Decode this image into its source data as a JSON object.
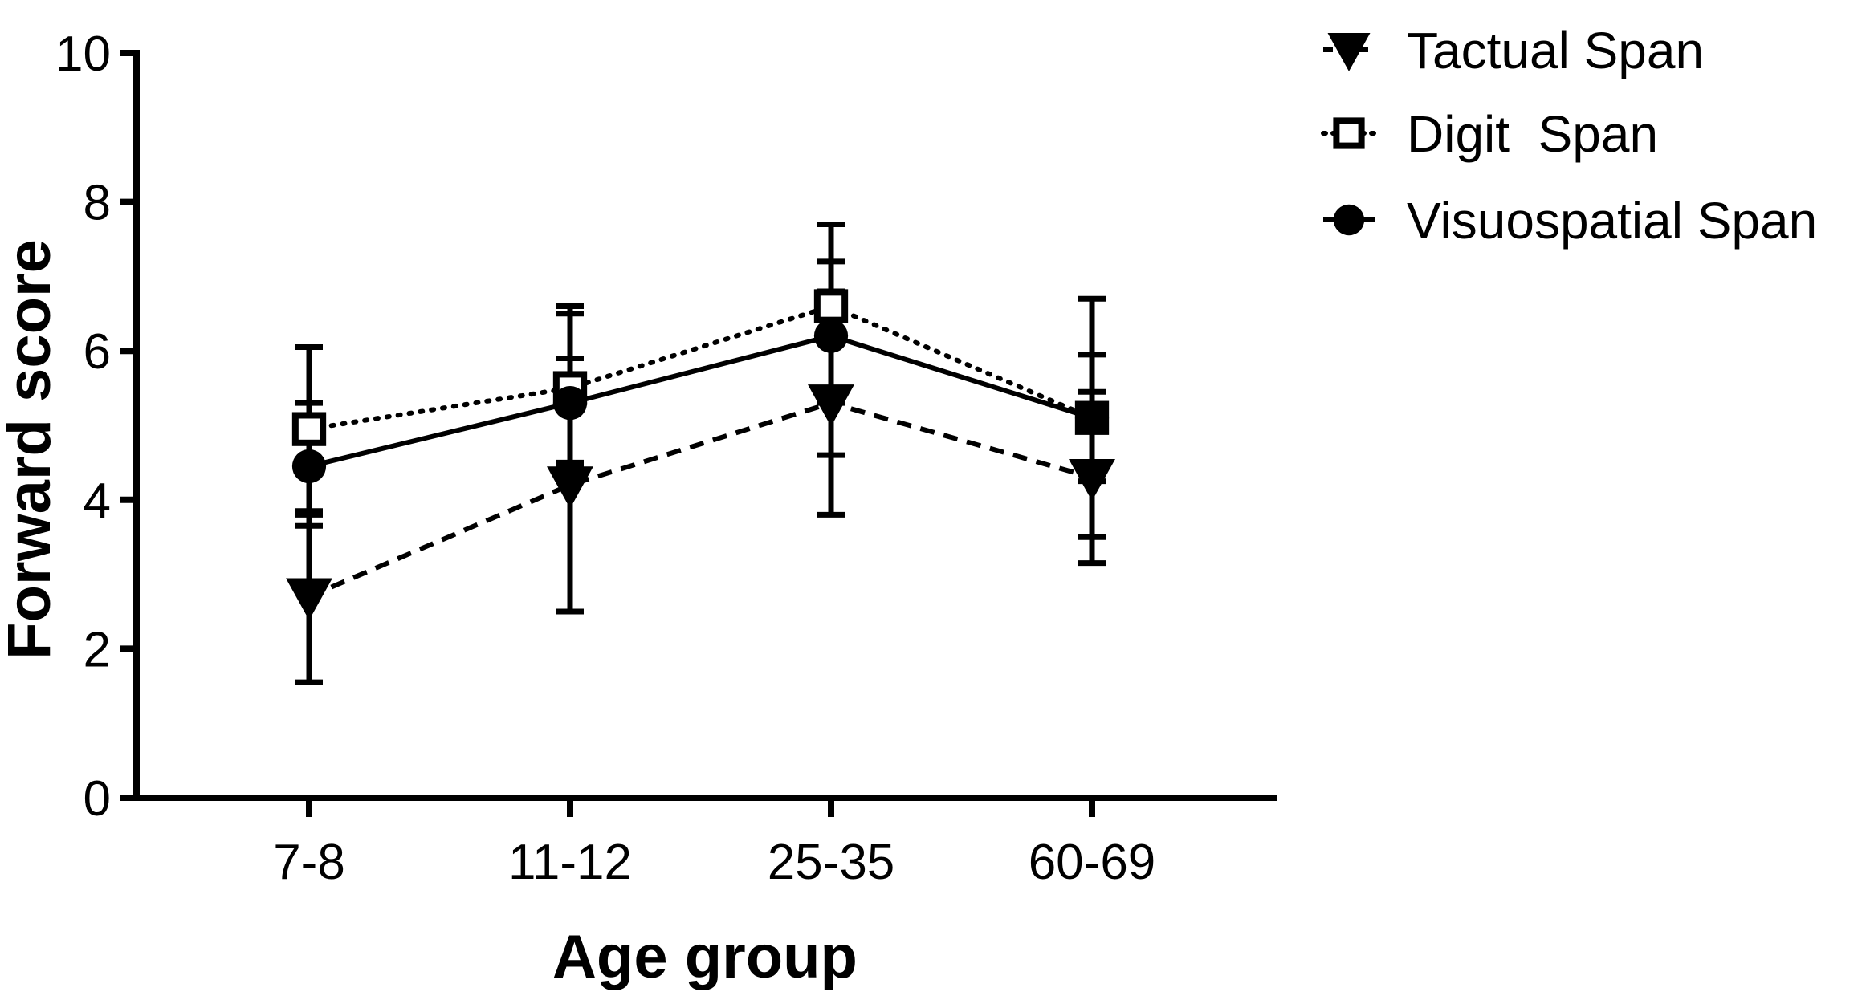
{
  "chart_data": {
    "type": "line",
    "title": "",
    "xlabel": "Age group",
    "ylabel": "Forward score",
    "categories": [
      "7-8",
      "11-12",
      "25-35",
      "60-69"
    ],
    "ylim": [
      0,
      10
    ],
    "yticks": [
      0,
      2,
      4,
      6,
      8,
      10
    ],
    "grid": false,
    "legend_position": "top-right",
    "series": [
      {
        "name": "Tactual Span",
        "legend_label": "Tactual Span",
        "marker": "triangle-down",
        "line_style": "dashed",
        "values": [
          2.7,
          4.2,
          5.3,
          4.3
        ],
        "error_low": [
          1.55,
          2.5,
          3.8,
          3.15
        ],
        "error_high": [
          3.85,
          5.9,
          6.8,
          5.45
        ]
      },
      {
        "name": "Digit Span",
        "legend_label": "Digit  Span",
        "marker": "square-open",
        "line_style": "dotted",
        "values": [
          4.95,
          5.5,
          6.6,
          5.1
        ],
        "error_low": [
          3.65,
          4.45,
          5.3,
          4.25
        ],
        "error_high": [
          5.3,
          6.5,
          7.2,
          5.95
        ]
      },
      {
        "name": "Visuospatial Span",
        "legend_label": "Visuospatial Span",
        "marker": "circle",
        "line_style": "solid",
        "values": [
          4.45,
          5.3,
          6.2,
          5.1
        ],
        "error_low": [
          3.8,
          4.5,
          4.6,
          3.5
        ],
        "error_high": [
          6.05,
          6.6,
          7.7,
          6.7
        ]
      }
    ]
  },
  "colors": {
    "ink": "#000000",
    "background": "#ffffff"
  }
}
